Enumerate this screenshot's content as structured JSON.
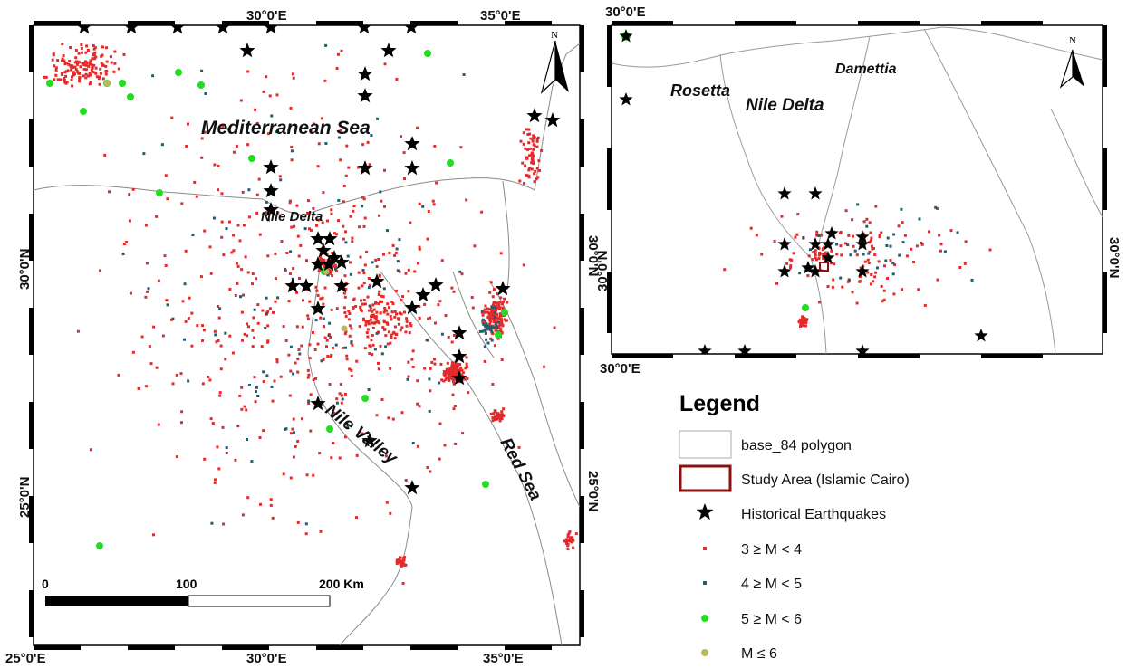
{
  "main_map": {
    "coords": {
      "top_left": "30°0'E",
      "top_right": "35°0'E",
      "bottom_1": "25°0'E",
      "bottom_2": "30°0'E",
      "bottom_3": "35°0'E",
      "left_top": "30°0'N",
      "left_bottom": "25°0'N",
      "right_top": "30°0'N",
      "right_bottom": "25°0'N"
    },
    "labels": {
      "sea": "Mediterranean Sea",
      "delta": "Nile Delta",
      "valley": "Nile Valley",
      "red_sea": "Red Sea"
    },
    "scale": {
      "t0": "0",
      "t1": "100",
      "t2": "200 Km"
    },
    "north": "N"
  },
  "inset_map": {
    "coords": {
      "top": "30°0'E",
      "bottom": "30°0'E",
      "left": "30°0'N",
      "right": "30°0'N"
    },
    "labels": {
      "rosetta": "Rosetta",
      "dametta": "Damettia",
      "delta": "Nile Delta"
    },
    "north": "N"
  },
  "legend": {
    "title": "Legend",
    "items": [
      {
        "label": "base_84 polygon",
        "symbol": "polygon"
      },
      {
        "label": "Study Area (Islamic Cairo)",
        "symbol": "study-area"
      },
      {
        "label": "Historical Earthquakes",
        "symbol": "star"
      },
      {
        "label": "3 ≥ M < 4",
        "symbol": "red-square"
      },
      {
        "label": "4 ≥ M < 5",
        "symbol": "teal-square"
      },
      {
        "label": "5 ≥ M < 6",
        "symbol": "green-circle"
      },
      {
        "label": "M ≤  6",
        "symbol": "olive-circle"
      }
    ]
  },
  "colors": {
    "m3": "#e32b2b",
    "m4": "#1e5f74",
    "m5": "#22dd22",
    "m6": "#b8b860",
    "study": "#8b1010"
  }
}
